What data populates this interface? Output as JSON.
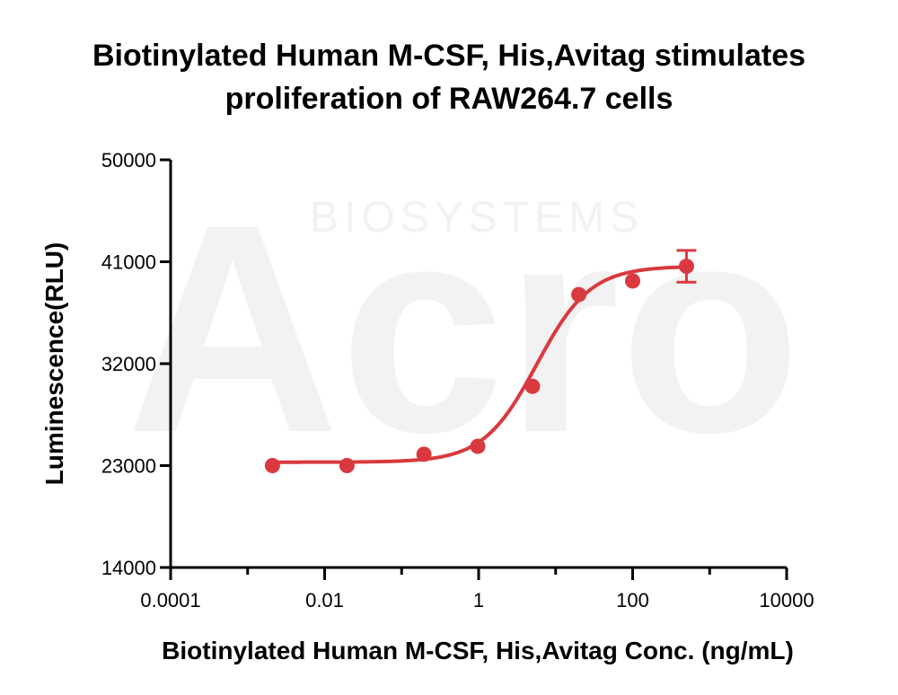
{
  "chart_data": {
    "type": "scatter",
    "title_line1": "Biotinylated Human M-CSF, His,Avitag stimulates",
    "title_line2": "proliferation of RAW264.7 cells",
    "xlabel": "Biotinylated Human M-CSF, His,Avitag Conc. (ng/mL)",
    "ylabel": "Luminescence(RLU)",
    "x_scale": "log",
    "xlim": [
      0.0001,
      10000
    ],
    "ylim": [
      14000,
      50000
    ],
    "x_ticks": [
      "0.0001",
      "0.01",
      "1",
      "100",
      "10000"
    ],
    "y_ticks": [
      "14000",
      "23000",
      "32000",
      "41000",
      "50000"
    ],
    "grid": false,
    "color": "#d9393f",
    "series": [
      {
        "x": [
          0.0021,
          0.0195,
          0.195,
          0.975,
          5.0,
          20.0,
          100.0,
          500.0
        ],
        "y": [
          23000,
          23000,
          24000,
          24700,
          30000,
          38100,
          39300,
          40600
        ],
        "error": [
          0,
          0,
          0,
          0,
          0,
          0,
          0,
          1400
        ]
      }
    ],
    "fit_curve": {
      "model": "4PL",
      "bottom": 23300,
      "top": 40600,
      "ec50": 5.7,
      "hill": 1.25
    }
  },
  "watermark": {
    "brand": "Acro",
    "sub": "BIOSYSTEMS"
  }
}
